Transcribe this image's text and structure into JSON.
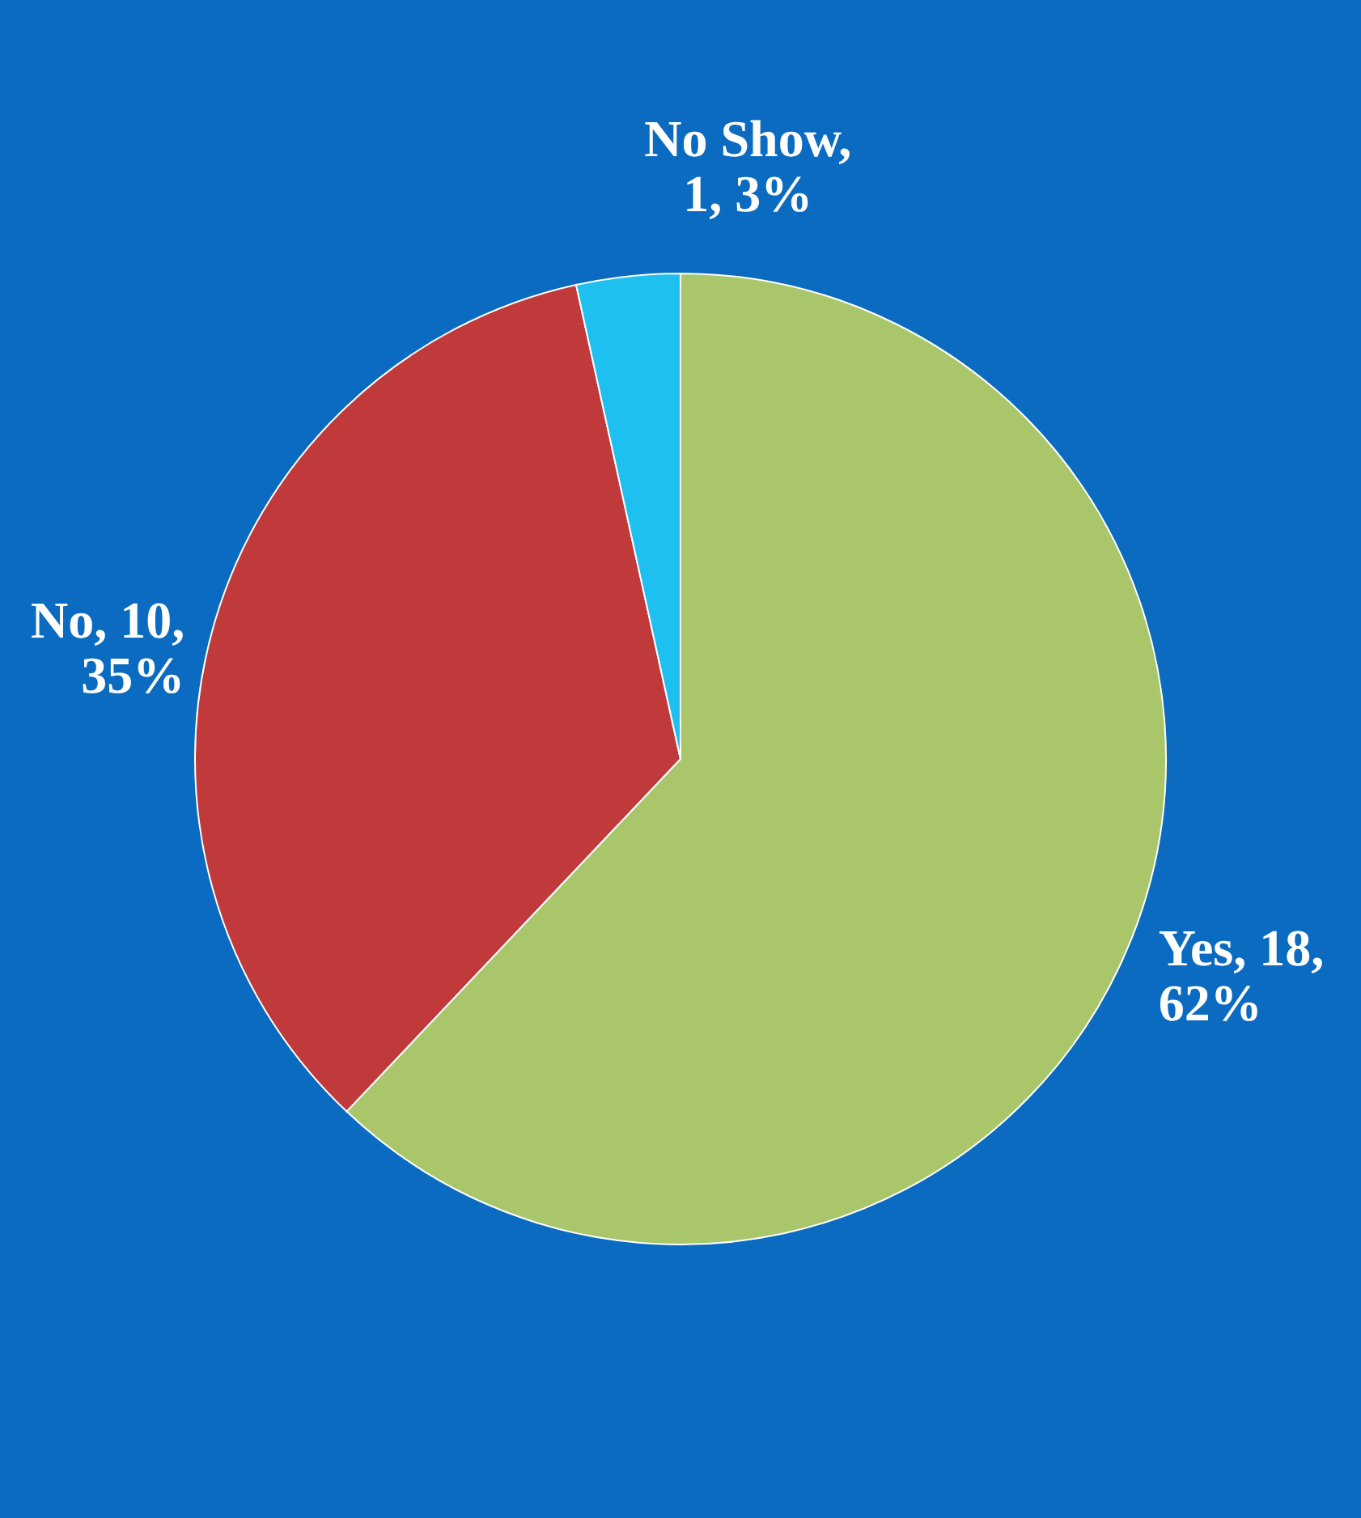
{
  "chart_data": {
    "type": "pie",
    "categories": [
      "Yes",
      "No",
      "No Show"
    ],
    "values": [
      18,
      10,
      1
    ],
    "colors": [
      "#a9c66a",
      "#c0393b",
      "#1ec0f0"
    ],
    "value_labels": [
      ", 18, 62%",
      ", 10, 35%",
      ", 1, 3%"
    ]
  }
}
